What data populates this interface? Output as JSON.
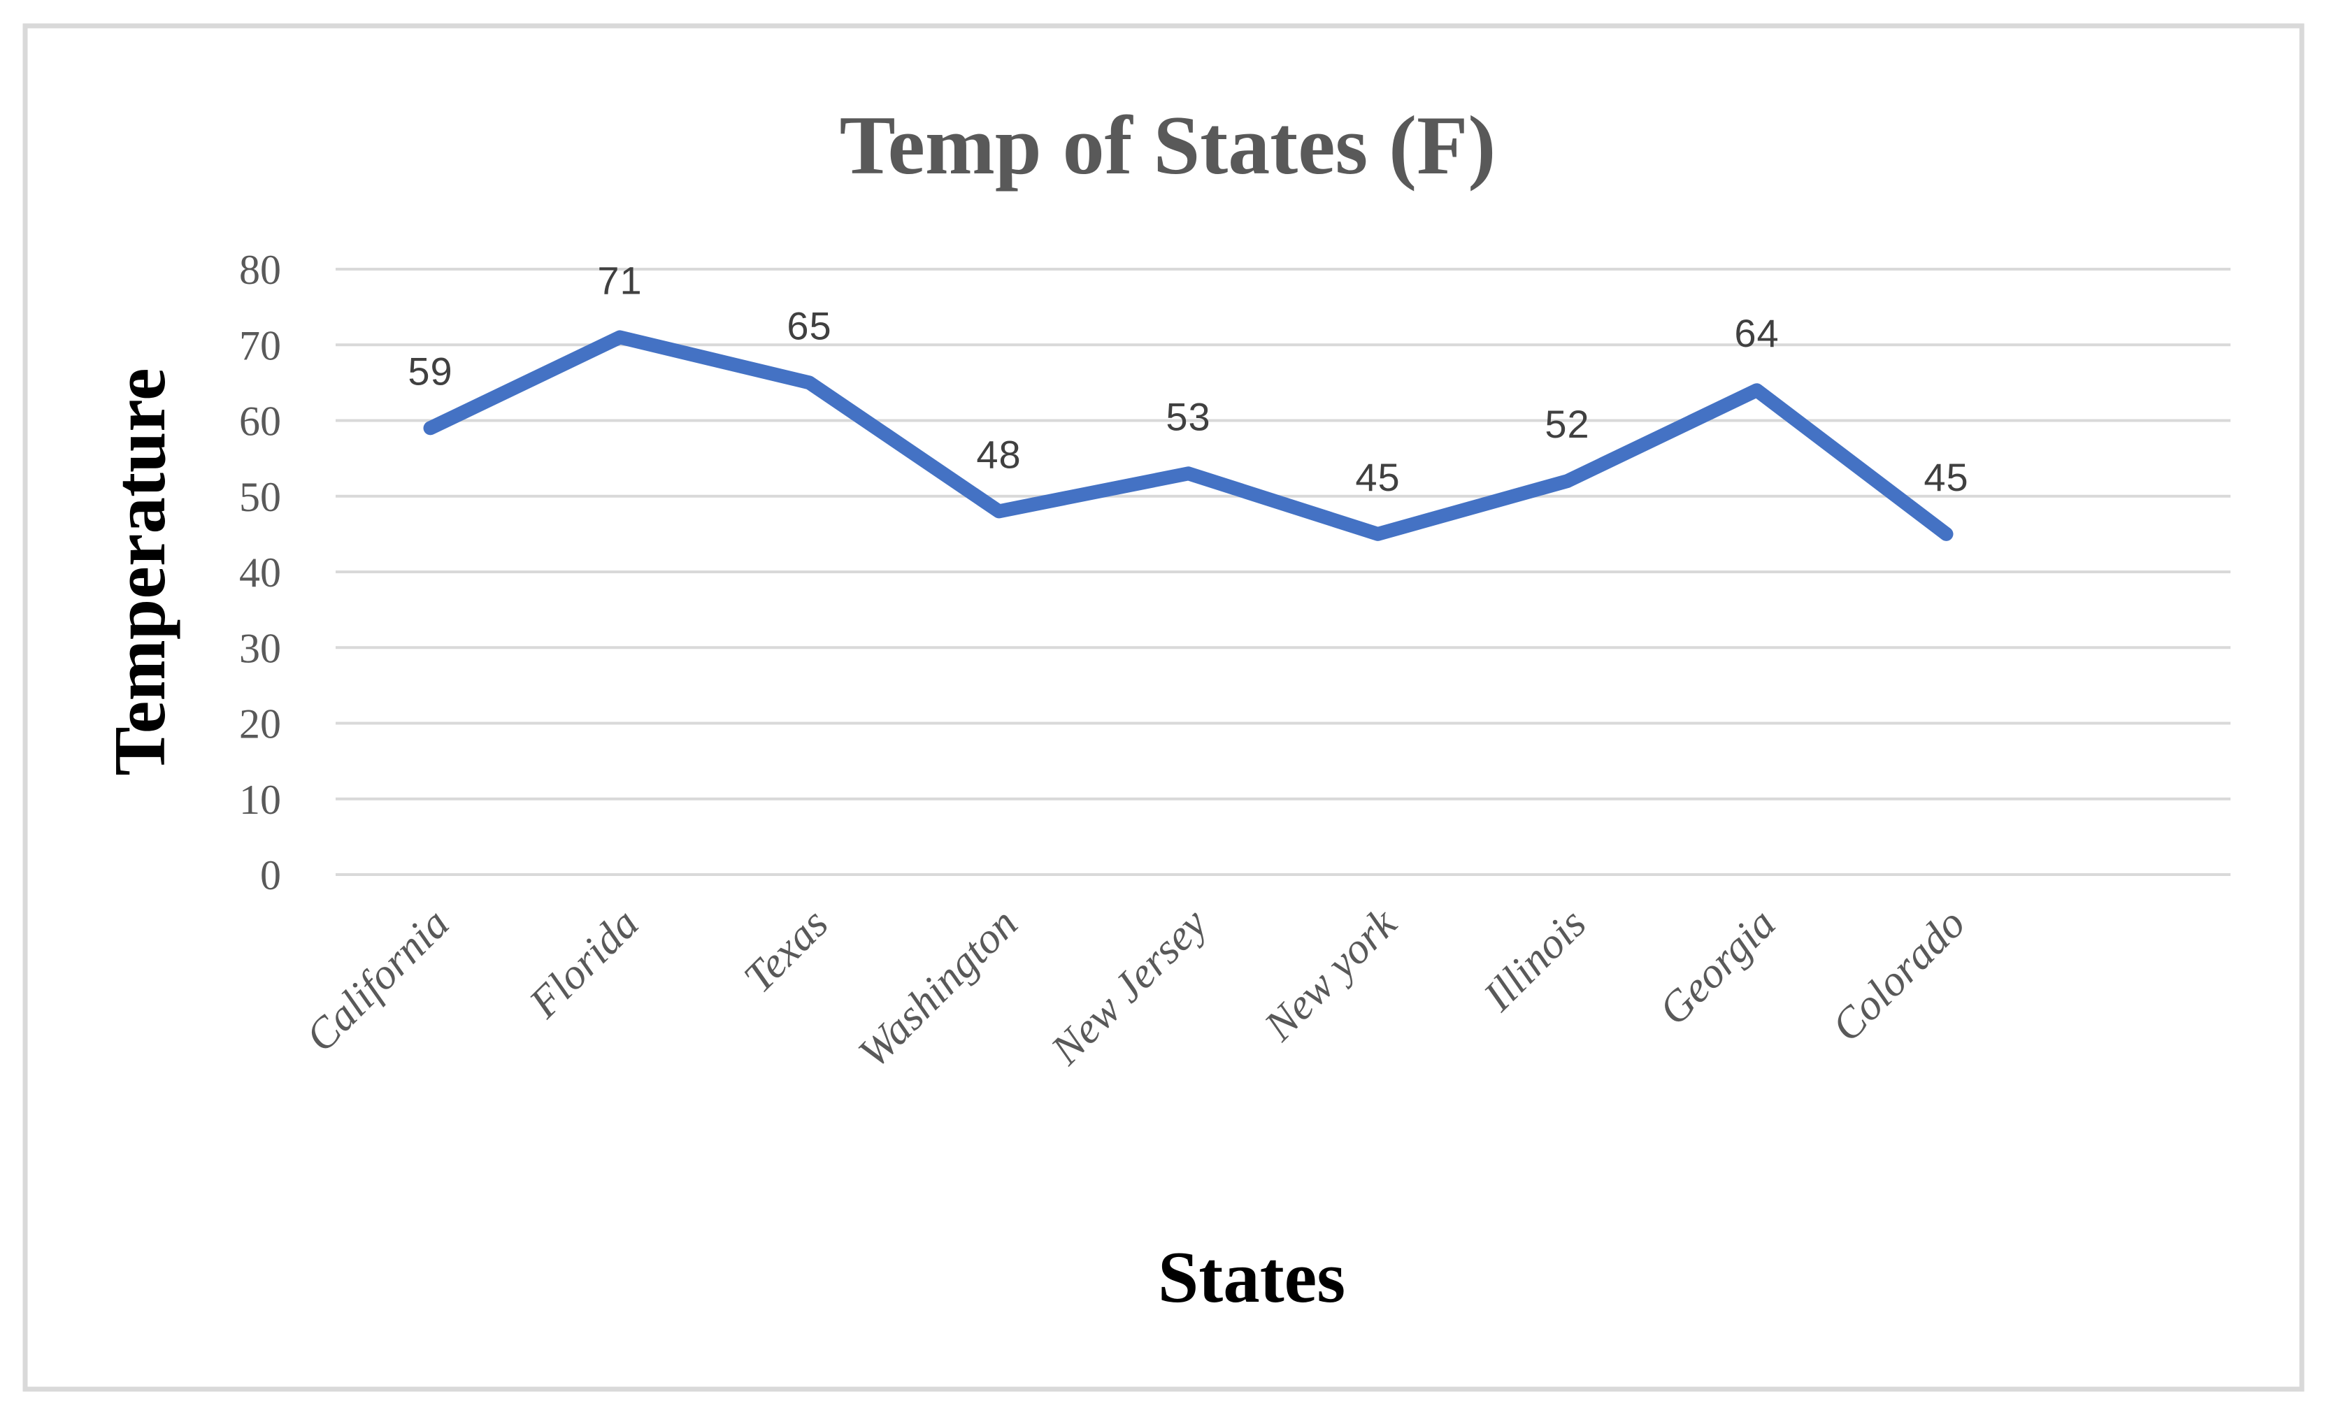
{
  "chart_data": {
    "type": "line",
    "title": "Temp of States (F)",
    "xlabel": "States",
    "ylabel": "Temperature",
    "categories": [
      "California",
      "Florida",
      "Texas",
      "Washington",
      "New Jersey",
      "New york",
      "Illinois",
      "Georgia",
      "Colorado"
    ],
    "values": [
      59,
      71,
      65,
      48,
      53,
      45,
      52,
      64,
      45
    ],
    "data_labels_shown": true,
    "ylim": [
      0,
      80
    ],
    "yticks": [
      0,
      10,
      20,
      30,
      40,
      50,
      60,
      70,
      80
    ],
    "x_slots": 10,
    "grid": "horizontal",
    "legend": "none"
  },
  "colors": {
    "line": "#4472C4",
    "gridlines": "#D9D9D9",
    "chart_border": "#D9D9D9",
    "title_text": "#595959",
    "tick_text": "#595959",
    "axis_title_text": "#000000",
    "data_label_text": "#404040",
    "background": "#FFFFFF"
  }
}
